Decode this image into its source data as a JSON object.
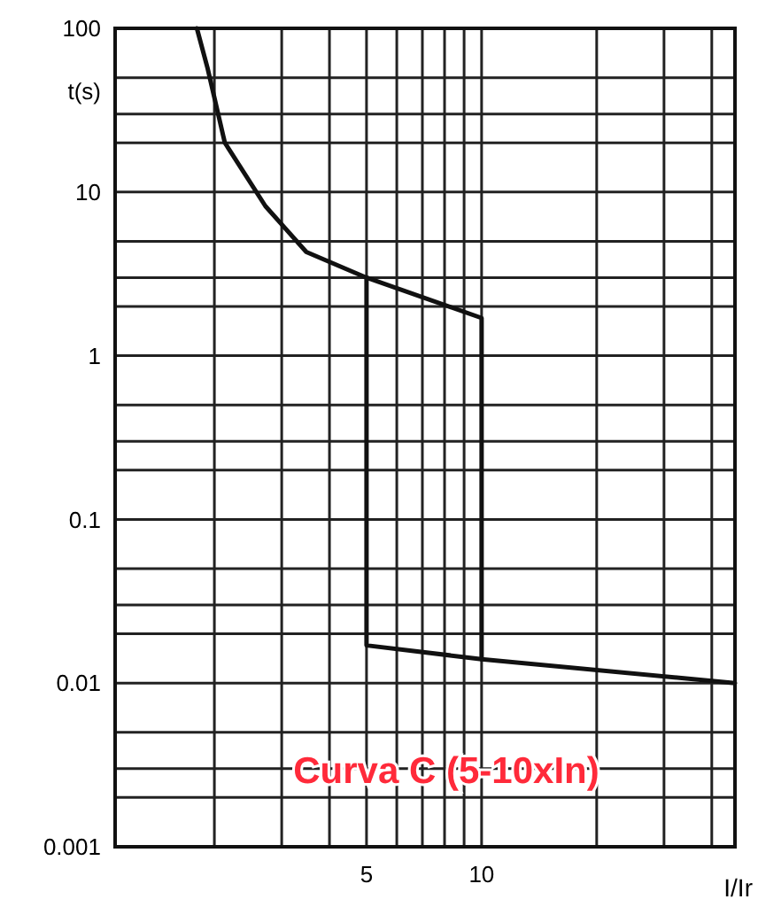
{
  "chart_data": {
    "type": "line",
    "xlabel": "I/Ir",
    "ylabel": "t(s)",
    "log": "xy",
    "grid": true,
    "marker": "none",
    "line_style": "solid",
    "xlim": [
      1.1,
      46
    ],
    "ylim": [
      0.001,
      100
    ],
    "xticks": [
      {
        "value": 2,
        "label": null
      },
      {
        "value": 3,
        "label": null
      },
      {
        "value": 4,
        "label": null
      },
      5,
      {
        "value": 6,
        "label": null
      },
      {
        "value": 7,
        "label": null
      },
      {
        "value": 8,
        "label": null
      },
      {
        "value": 9,
        "label": null
      },
      10,
      {
        "value": 20,
        "label": null
      },
      {
        "value": 30,
        "label": null
      },
      {
        "value": 40,
        "label": null
      }
    ],
    "yticks": [
      0.001,
      {
        "value": 0.002,
        "label": null
      },
      {
        "value": 0.003,
        "label": null
      },
      {
        "value": 0.005,
        "label": null
      },
      0.01,
      {
        "value": 0.02,
        "label": null
      },
      {
        "value": 0.03,
        "label": null
      },
      {
        "value": 0.05,
        "label": null
      },
      0.1,
      {
        "value": 0.2,
        "label": null
      },
      {
        "value": 0.3,
        "label": null
      },
      {
        "value": 0.5,
        "label": null
      },
      1,
      {
        "value": 2,
        "label": null
      },
      {
        "value": 3,
        "label": null
      },
      {
        "value": 5,
        "label": null
      },
      10,
      {
        "value": 20,
        "label": null
      },
      {
        "value": 30,
        "label": null
      },
      {
        "value": 50,
        "label": null
      },
      100
    ],
    "series": [
      {
        "color": "#111111",
        "x": [
          1.8,
          1.92,
          2.13,
          2.72,
          3.48,
          5,
          10,
          10
        ],
        "values": [
          100,
          57,
          20,
          8.2,
          4.3,
          3.0,
          1.7,
          0.014
        ]
      },
      {
        "color": "#111111",
        "x": [
          5,
          5,
          10,
          46
        ],
        "values": [
          3.0,
          0.017,
          0.014,
          0.01
        ]
      }
    ],
    "annotations": [
      "Curva C (5-10xIn)"
    ]
  }
}
